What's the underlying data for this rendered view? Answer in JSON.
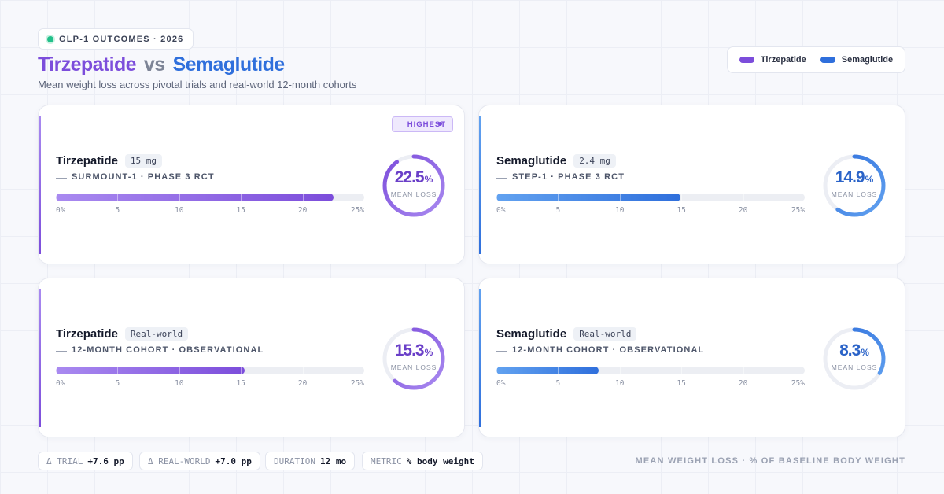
{
  "header": {
    "badge": "GLP-1 OUTCOMES · 2026",
    "title": [
      "Tirzepatide",
      "vs",
      "Semaglutide"
    ],
    "subtitle": "Mean weight loss across pivotal trials and real-world 12-month cohorts"
  },
  "legend": [
    {
      "name": "Tirzepatide",
      "color": "#7c4ddb"
    },
    {
      "name": "Semaglutide",
      "color": "#2f6fdc"
    }
  ],
  "scale": {
    "xlim": [
      0,
      25
    ],
    "xticks": [
      {
        "value": 0,
        "label": "0%"
      },
      5,
      10,
      15,
      20,
      {
        "value": 25,
        "label": "25%"
      }
    ]
  },
  "cards": [
    {
      "drug": "Tirzepatide",
      "tag": "15 mg",
      "study": "SURMOUNT-1 · PHASE 3 RCT",
      "value": 22.5,
      "unit": "%",
      "value_caption": "MEAN LOSS",
      "badge": "HIGHEST",
      "color": "#7c4ddb"
    },
    {
      "drug": "Semaglutide",
      "tag": "2.4 mg",
      "study": "STEP-1 · PHASE 3 RCT",
      "value": 14.9,
      "unit": "%",
      "value_caption": "MEAN LOSS",
      "color": "#2f6fdc"
    },
    {
      "drug": "Tirzepatide",
      "tag": "Real-world",
      "study": "12-MONTH COHORT · OBSERVATIONAL",
      "value": 15.3,
      "unit": "%",
      "value_caption": "MEAN LOSS",
      "color": "#7c4ddb"
    },
    {
      "drug": "Semaglutide",
      "tag": "Real-world",
      "study": "12-MONTH COHORT · OBSERVATIONAL",
      "value": 8.3,
      "unit": "%",
      "value_caption": "MEAN LOSS",
      "color": "#2f6fdc"
    }
  ],
  "footer": {
    "stats": [
      {
        "label": "Δ TRIAL",
        "value": "+7.6 pp"
      },
      {
        "label": "Δ REAL-WORLD",
        "value": "+7.0 pp"
      },
      {
        "label": "DURATION",
        "value": "12 mo"
      },
      {
        "label": "METRIC",
        "value": "% body weight"
      }
    ],
    "note": "MEAN WEIGHT LOSS · % OF BASELINE BODY WEIGHT"
  }
}
